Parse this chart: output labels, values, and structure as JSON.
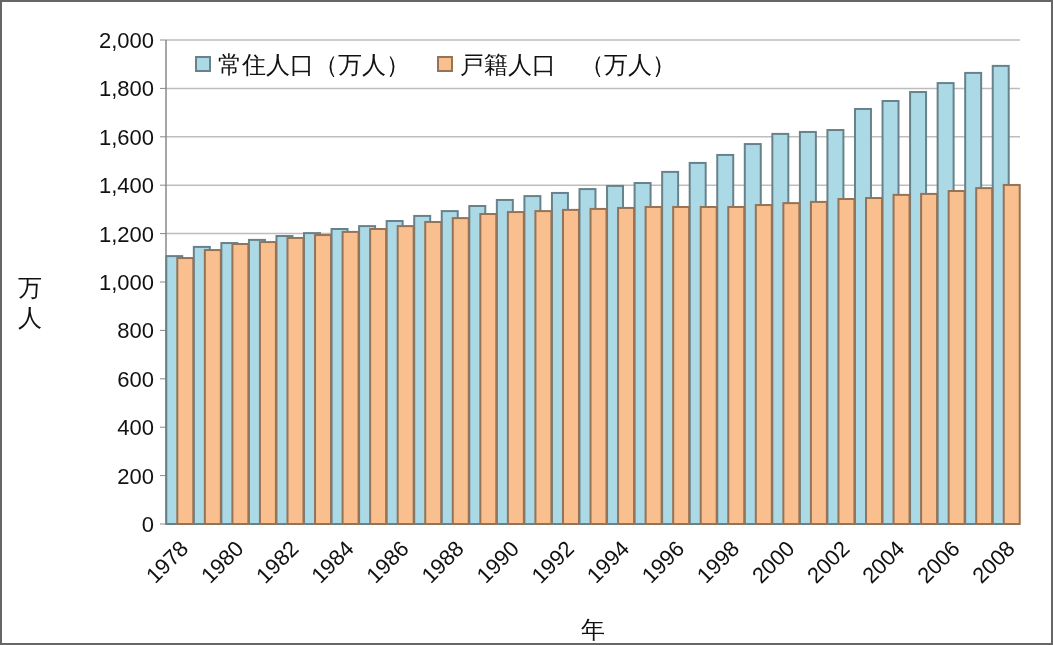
{
  "chart_data": {
    "type": "bar",
    "xlabel": "年",
    "ylabel": "万人",
    "categories": [
      "1978",
      null,
      "1980",
      null,
      "1982",
      null,
      "1984",
      null,
      "1986",
      null,
      "1988",
      null,
      "1990",
      null,
      "1992",
      null,
      "1994",
      null,
      "1996",
      null,
      "1998",
      null,
      "2000",
      null,
      "2002",
      null,
      "2004",
      null,
      "2006",
      null,
      "2008"
    ],
    "series": [
      {
        "name": "常住人口（万人）",
        "color": "#acd9e6",
        "values": [
          1107,
          1145,
          1161,
          1174,
          1190,
          1202,
          1219,
          1231,
          1252,
          1273,
          1293,
          1314,
          1339,
          1355,
          1368,
          1384,
          1397,
          1409,
          1455,
          1492,
          1525,
          1570,
          1612,
          1620,
          1628,
          1715,
          1748,
          1785,
          1822,
          1864,
          1893
        ]
      },
      {
        "name": "戸籍人口　（万人）",
        "color": "#f9bf8f",
        "values": [
          1099,
          1132,
          1157,
          1165,
          1182,
          1194,
          1207,
          1219,
          1231,
          1248,
          1264,
          1281,
          1289,
          1293,
          1298,
          1302,
          1306,
          1310,
          1310,
          1310,
          1310,
          1318,
          1326,
          1331,
          1343,
          1347,
          1360,
          1364,
          1376,
          1388,
          1401
        ]
      }
    ],
    "ylim": [
      0,
      2000
    ],
    "yticks": [
      {
        "value": 0,
        "label": "0"
      },
      {
        "value": 200,
        "label": "200"
      },
      {
        "value": 400,
        "label": "400"
      },
      {
        "value": 600,
        "label": "600"
      },
      {
        "value": 800,
        "label": "800"
      },
      {
        "value": 1000,
        "label": "1,000"
      },
      {
        "value": 1200,
        "label": "1,200"
      },
      {
        "value": 1400,
        "label": "1,400"
      },
      {
        "value": 1600,
        "label": "1,600"
      },
      {
        "value": 1800,
        "label": "1,800"
      },
      {
        "value": 2000,
        "label": "2,000"
      }
    ],
    "grid": "y",
    "legend": "top left"
  }
}
